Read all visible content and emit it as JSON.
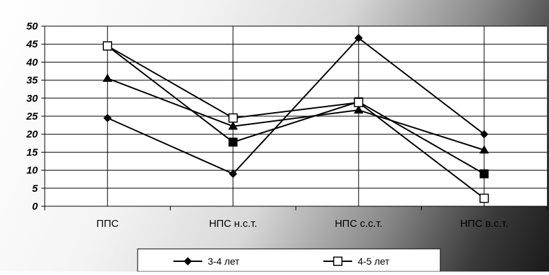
{
  "chart_data": {
    "type": "line",
    "categories": [
      "ППС",
      "НПС н.с.т.",
      "НПС с.с.т.",
      "НПС в.с.т."
    ],
    "series": [
      {
        "name": "3-4 лет",
        "marker": "diamond",
        "values": [
          24.5,
          9,
          46.7,
          20
        ]
      },
      {
        "marker": "triangle",
        "values": [
          35.5,
          22.2,
          26.7,
          15.6
        ]
      },
      {
        "marker": "square-filled",
        "values": [
          44.5,
          17.8,
          29,
          9
        ]
      },
      {
        "name": "4-5 лет",
        "marker": "square-open",
        "values": [
          44.5,
          24.5,
          28.8,
          2.2
        ]
      }
    ],
    "ylim": [
      0,
      50
    ],
    "yticks": [
      0,
      5,
      10,
      15,
      20,
      25,
      30,
      35,
      40,
      45,
      50
    ],
    "ytick_labels": [
      "0",
      "5",
      "10",
      "15",
      "20",
      "25",
      "30",
      "35",
      "40",
      "45",
      "50"
    ],
    "grid": true,
    "legend_position": "bottom",
    "colors": {
      "line": "#000000",
      "plot_background": "#ffffff"
    }
  }
}
